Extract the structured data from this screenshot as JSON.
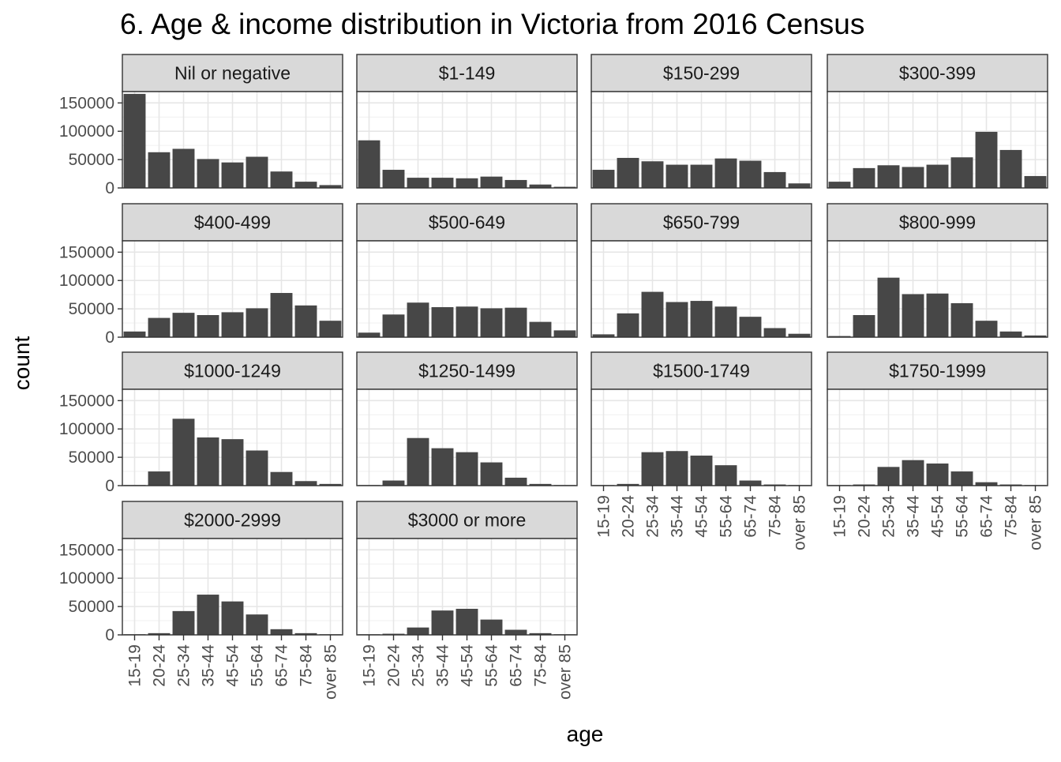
{
  "chart_data": {
    "type": "bar",
    "title": "6. Age & income distribution in Victoria from 2016 Census",
    "xlabel": "age",
    "ylabel": "count",
    "categories": [
      "15-19",
      "20-24",
      "25-34",
      "35-44",
      "45-54",
      "55-64",
      "65-74",
      "75-84",
      "over 85"
    ],
    "ylim": [
      0,
      170000
    ],
    "yticks": [
      0,
      50000,
      100000,
      150000
    ],
    "ytick_labels": [
      "0",
      "50000",
      "100000",
      "150000"
    ],
    "grid": true,
    "bar_color": "#474747",
    "strip_color": "#d9d9d9",
    "layout": "facet_wrap, 4 columns, fixed scales",
    "panels": [
      {
        "label": "Nil or negative",
        "values": [
          166000,
          63000,
          69000,
          51000,
          45000,
          55000,
          29000,
          11000,
          5000
        ]
      },
      {
        "label": "$1-149",
        "values": [
          84000,
          32000,
          18000,
          18000,
          17000,
          20000,
          14000,
          6000,
          2000
        ]
      },
      {
        "label": "$150-299",
        "values": [
          32000,
          53000,
          47000,
          41000,
          41000,
          52000,
          48000,
          28000,
          8000
        ]
      },
      {
        "label": "$300-399",
        "values": [
          11000,
          35000,
          40000,
          37000,
          41000,
          54000,
          99000,
          67000,
          21000
        ]
      },
      {
        "label": "$400-499",
        "values": [
          10000,
          34000,
          43000,
          39000,
          44000,
          51000,
          78000,
          56000,
          29000
        ]
      },
      {
        "label": "$500-649",
        "values": [
          8000,
          40000,
          61000,
          53000,
          54000,
          51000,
          52000,
          27000,
          12000
        ]
      },
      {
        "label": "$650-799",
        "values": [
          5000,
          42000,
          80000,
          62000,
          64000,
          54000,
          36000,
          16000,
          6000
        ]
      },
      {
        "label": "$800-999",
        "values": [
          2000,
          39000,
          105000,
          76000,
          77000,
          60000,
          29000,
          10000,
          3000
        ]
      },
      {
        "label": "$1000-1249",
        "values": [
          1000,
          25000,
          118000,
          85000,
          82000,
          62000,
          24000,
          8000,
          3000
        ]
      },
      {
        "label": "$1250-1499",
        "values": [
          1000,
          9000,
          84000,
          66000,
          59000,
          41000,
          14000,
          3000,
          1000
        ]
      },
      {
        "label": "$1500-1749",
        "values": [
          500,
          3000,
          59000,
          61000,
          53000,
          36000,
          9000,
          2000,
          1000
        ]
      },
      {
        "label": "$1750-1999",
        "values": [
          300,
          2000,
          33000,
          45000,
          39000,
          25000,
          6000,
          2000,
          1000
        ]
      },
      {
        "label": "$2000-2999",
        "values": [
          400,
          3000,
          42000,
          71000,
          59000,
          36000,
          10000,
          3000,
          1000
        ]
      },
      {
        "label": "$3000 or more",
        "values": [
          300,
          2000,
          13000,
          43000,
          46000,
          27000,
          9000,
          3000,
          1000
        ]
      }
    ]
  }
}
